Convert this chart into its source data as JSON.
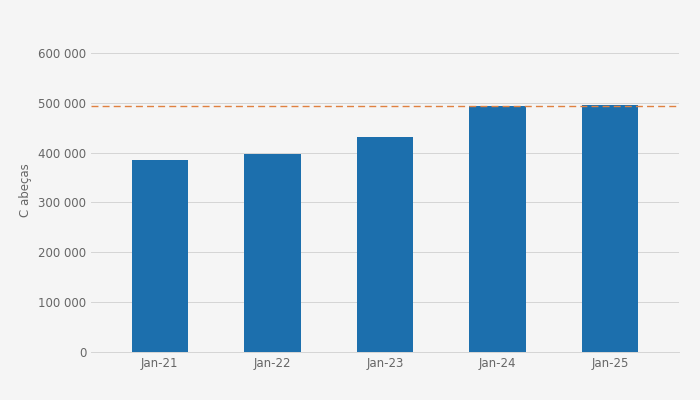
{
  "categories": [
    "Jan-21",
    "Jan-22",
    "Jan-23",
    "Jan-24",
    "Jan-25"
  ],
  "values": [
    385000,
    397000,
    432000,
    493000,
    496000
  ],
  "bar_color": "#1c6fad",
  "hline_value": 493000,
  "hline_color": "#e08040",
  "ylabel": "Cabeças",
  "ylim": [
    0,
    650000
  ],
  "yticks": [
    0,
    100000,
    200000,
    300000,
    400000,
    500000,
    600000
  ],
  "ytick_labels": [
    "0",
    "100 000",
    "200 000",
    "300 000",
    "400 000",
    "500 000",
    "600 000"
  ],
  "background_color": "#f5f5f5",
  "plot_bg_color": "#f5f5f5",
  "grid_color": "#d5d5d5",
  "bar_width": 0.5
}
